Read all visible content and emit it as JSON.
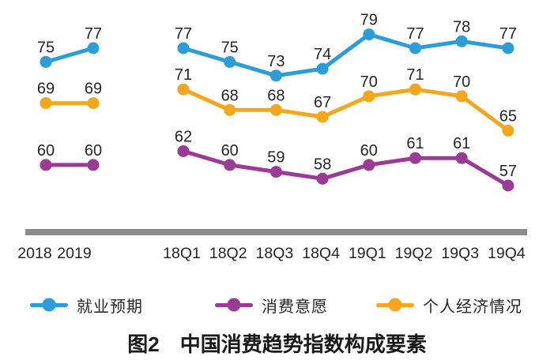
{
  "figure_title": {
    "prefix": "图2",
    "text": "中国消费趋势指数构成要素"
  },
  "chart_data": {
    "type": "line",
    "title": "图2 中国消费趋势指数构成要素",
    "grid": false,
    "legend_position": "bottom",
    "value_range": [
      57,
      79
    ],
    "groups": [
      {
        "id": "annual",
        "categories": [
          "2018",
          "2019"
        ]
      },
      {
        "id": "quarterly",
        "categories": [
          "18Q1",
          "18Q2",
          "18Q3",
          "18Q4",
          "19Q1",
          "19Q2",
          "19Q3",
          "19Q4"
        ]
      }
    ],
    "series": [
      {
        "name": "就业预期",
        "color": "#2B9DD8",
        "values": {
          "annual": [
            75,
            77
          ],
          "quarterly": [
            77,
            75,
            73,
            74,
            79,
            77,
            78,
            77
          ]
        }
      },
      {
        "name": "消费意愿",
        "color": "#9B3B95",
        "values": {
          "annual": [
            60,
            60
          ],
          "quarterly": [
            62,
            60,
            59,
            58,
            60,
            61,
            61,
            57
          ]
        }
      },
      {
        "name": "个人经济情况",
        "color": "#F5A71B",
        "values": {
          "annual": [
            69,
            69
          ],
          "quarterly": [
            71,
            68,
            68,
            67,
            70,
            71,
            70,
            65
          ]
        }
      }
    ],
    "colors": {
      "separator_bar": "#8C8C8C",
      "label_text": "#262626",
      "axis_text": "#262626"
    }
  }
}
